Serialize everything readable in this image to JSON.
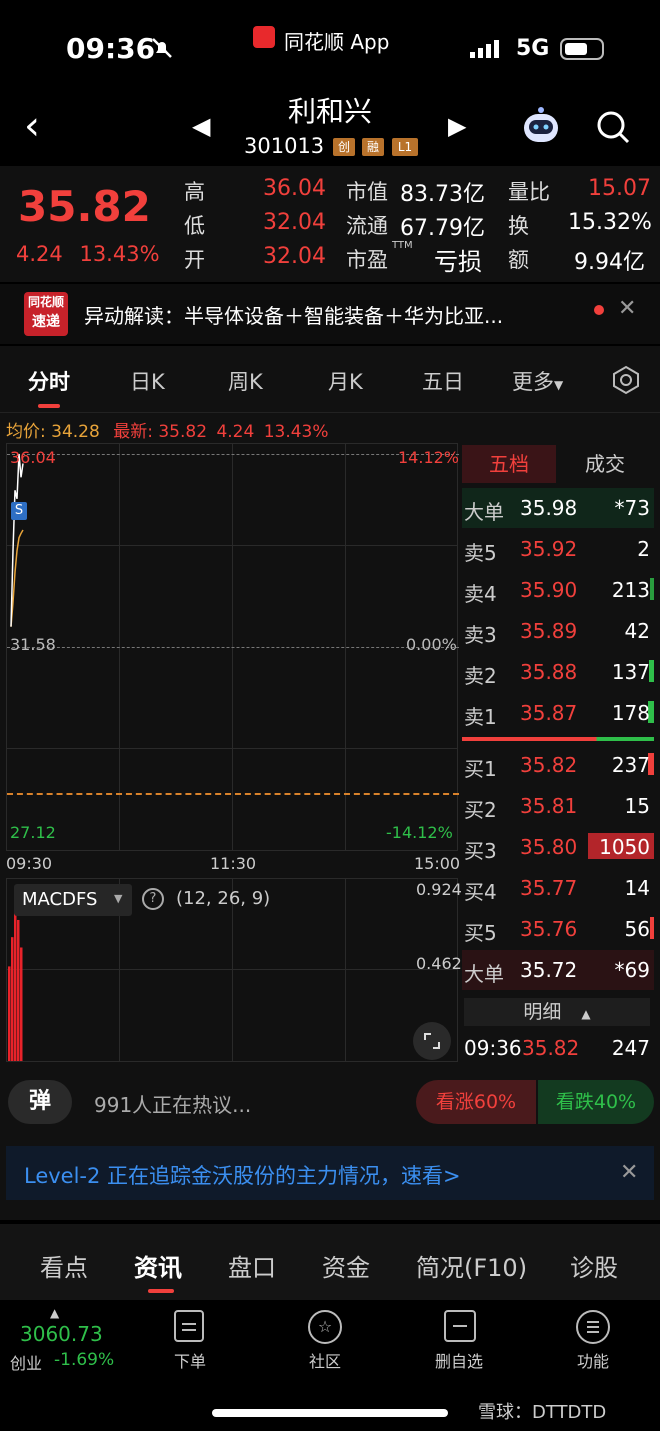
{
  "status_bar": {
    "time": "09:36",
    "app_name": "同花顺 App",
    "network": "5G"
  },
  "nav": {
    "stock_name": "利和兴",
    "stock_code": "301013",
    "tags": [
      "创",
      "融",
      "L1"
    ]
  },
  "quote": {
    "price": "35.82",
    "change": "4.24",
    "change_pct": "13.43%",
    "high_label": "高",
    "high": "36.04",
    "low_label": "低",
    "low": "32.04",
    "open_label": "开",
    "open": "32.04",
    "mcap_label": "市值",
    "mcap": "83.73亿",
    "float_label": "流通",
    "float": "67.79亿",
    "pe_label": "市盈",
    "pe_sup": "TTM",
    "pe": "亏损",
    "vr_label": "量比",
    "vr": "15.07",
    "turnover_label": "换",
    "turnover": "15.32%",
    "amount_label": "额",
    "amount": "9.94亿"
  },
  "news": {
    "logo_line1": "同花顺",
    "logo_line2": "速递",
    "text": "异动解读：半导体设备＋智能装备＋华为比亚..."
  },
  "tabs": [
    "分时",
    "日K",
    "周K",
    "月K",
    "五日",
    "更多"
  ],
  "avg_bar": {
    "avg_label": "均价:",
    "avg": "34.28",
    "last_label": "最新:",
    "last": "35.82",
    "chg": "4.24",
    "pct": "13.43%"
  },
  "chart_data": {
    "type": "line",
    "y_left_ticks": [
      "36.04",
      "31.58",
      "27.12"
    ],
    "y_right_ticks": [
      "14.12%",
      "0.00%",
      "-14.12%"
    ],
    "x_ticks": [
      "09:30",
      "11:30",
      "15:00"
    ],
    "marker": "S",
    "prev_close": 31.58,
    "ylim": [
      27.12,
      36.04
    ],
    "price_points": [
      [
        0,
        32.04
      ],
      [
        0.5,
        33.8
      ],
      [
        1,
        35.2
      ],
      [
        1.5,
        35.0
      ],
      [
        2,
        36.04
      ],
      [
        2.5,
        35.5
      ],
      [
        3,
        35.82
      ]
    ],
    "avg_points": [
      [
        0,
        32.04
      ],
      [
        0.5,
        32.6
      ],
      [
        1,
        33.3
      ],
      [
        1.5,
        33.8
      ],
      [
        2,
        34.1
      ],
      [
        2.5,
        34.2
      ],
      [
        3,
        34.28
      ]
    ],
    "macd": {
      "name": "MACDFS",
      "params": "(12, 26, 9)",
      "ticks": [
        "0.924",
        "0.462"
      ],
      "bars": [
        0.55,
        0.72,
        0.9,
        0.82,
        0.66
      ]
    }
  },
  "order_book": {
    "tab_active": "五档",
    "tab_other": "成交",
    "big_sell": {
      "label": "大单",
      "price": "35.98",
      "vol": "*73"
    },
    "sells": [
      {
        "label": "卖5",
        "price": "35.92",
        "vol": "2"
      },
      {
        "label": "卖4",
        "price": "35.90",
        "vol": "213"
      },
      {
        "label": "卖3",
        "price": "35.89",
        "vol": "42"
      },
      {
        "label": "卖2",
        "price": "35.88",
        "vol": "137"
      },
      {
        "label": "卖1",
        "price": "35.87",
        "vol": "178"
      }
    ],
    "buys": [
      {
        "label": "买1",
        "price": "35.82",
        "vol": "237"
      },
      {
        "label": "买2",
        "price": "35.81",
        "vol": "15"
      },
      {
        "label": "买3",
        "price": "35.80",
        "vol": "1050"
      },
      {
        "label": "买4",
        "price": "35.77",
        "vol": "14"
      },
      {
        "label": "买5",
        "price": "35.76",
        "vol": "56"
      }
    ],
    "big_buy": {
      "label": "大单",
      "price": "35.72",
      "vol": "*69"
    },
    "detail_label": "明细",
    "last_trade": {
      "time": "09:36",
      "price": "35.82",
      "vol": "247"
    }
  },
  "discuss": {
    "danmu": "弹",
    "text": "991人正在热议...",
    "bull": "看涨60%",
    "bear": "看跌40%"
  },
  "level2": {
    "text": "Level-2 正在追踪金沃股份的主力情况，速看>"
  },
  "sections": [
    "看点",
    "资讯",
    "盘口",
    "资金",
    "简况(F10)",
    "诊股"
  ],
  "bottom": {
    "index_value": "3060.73",
    "index_name": "创业",
    "index_change": "-1.69%",
    "buttons": [
      "下单",
      "社区",
      "删自选",
      "功能"
    ]
  },
  "watermark": "雪球：DTTDTD"
}
